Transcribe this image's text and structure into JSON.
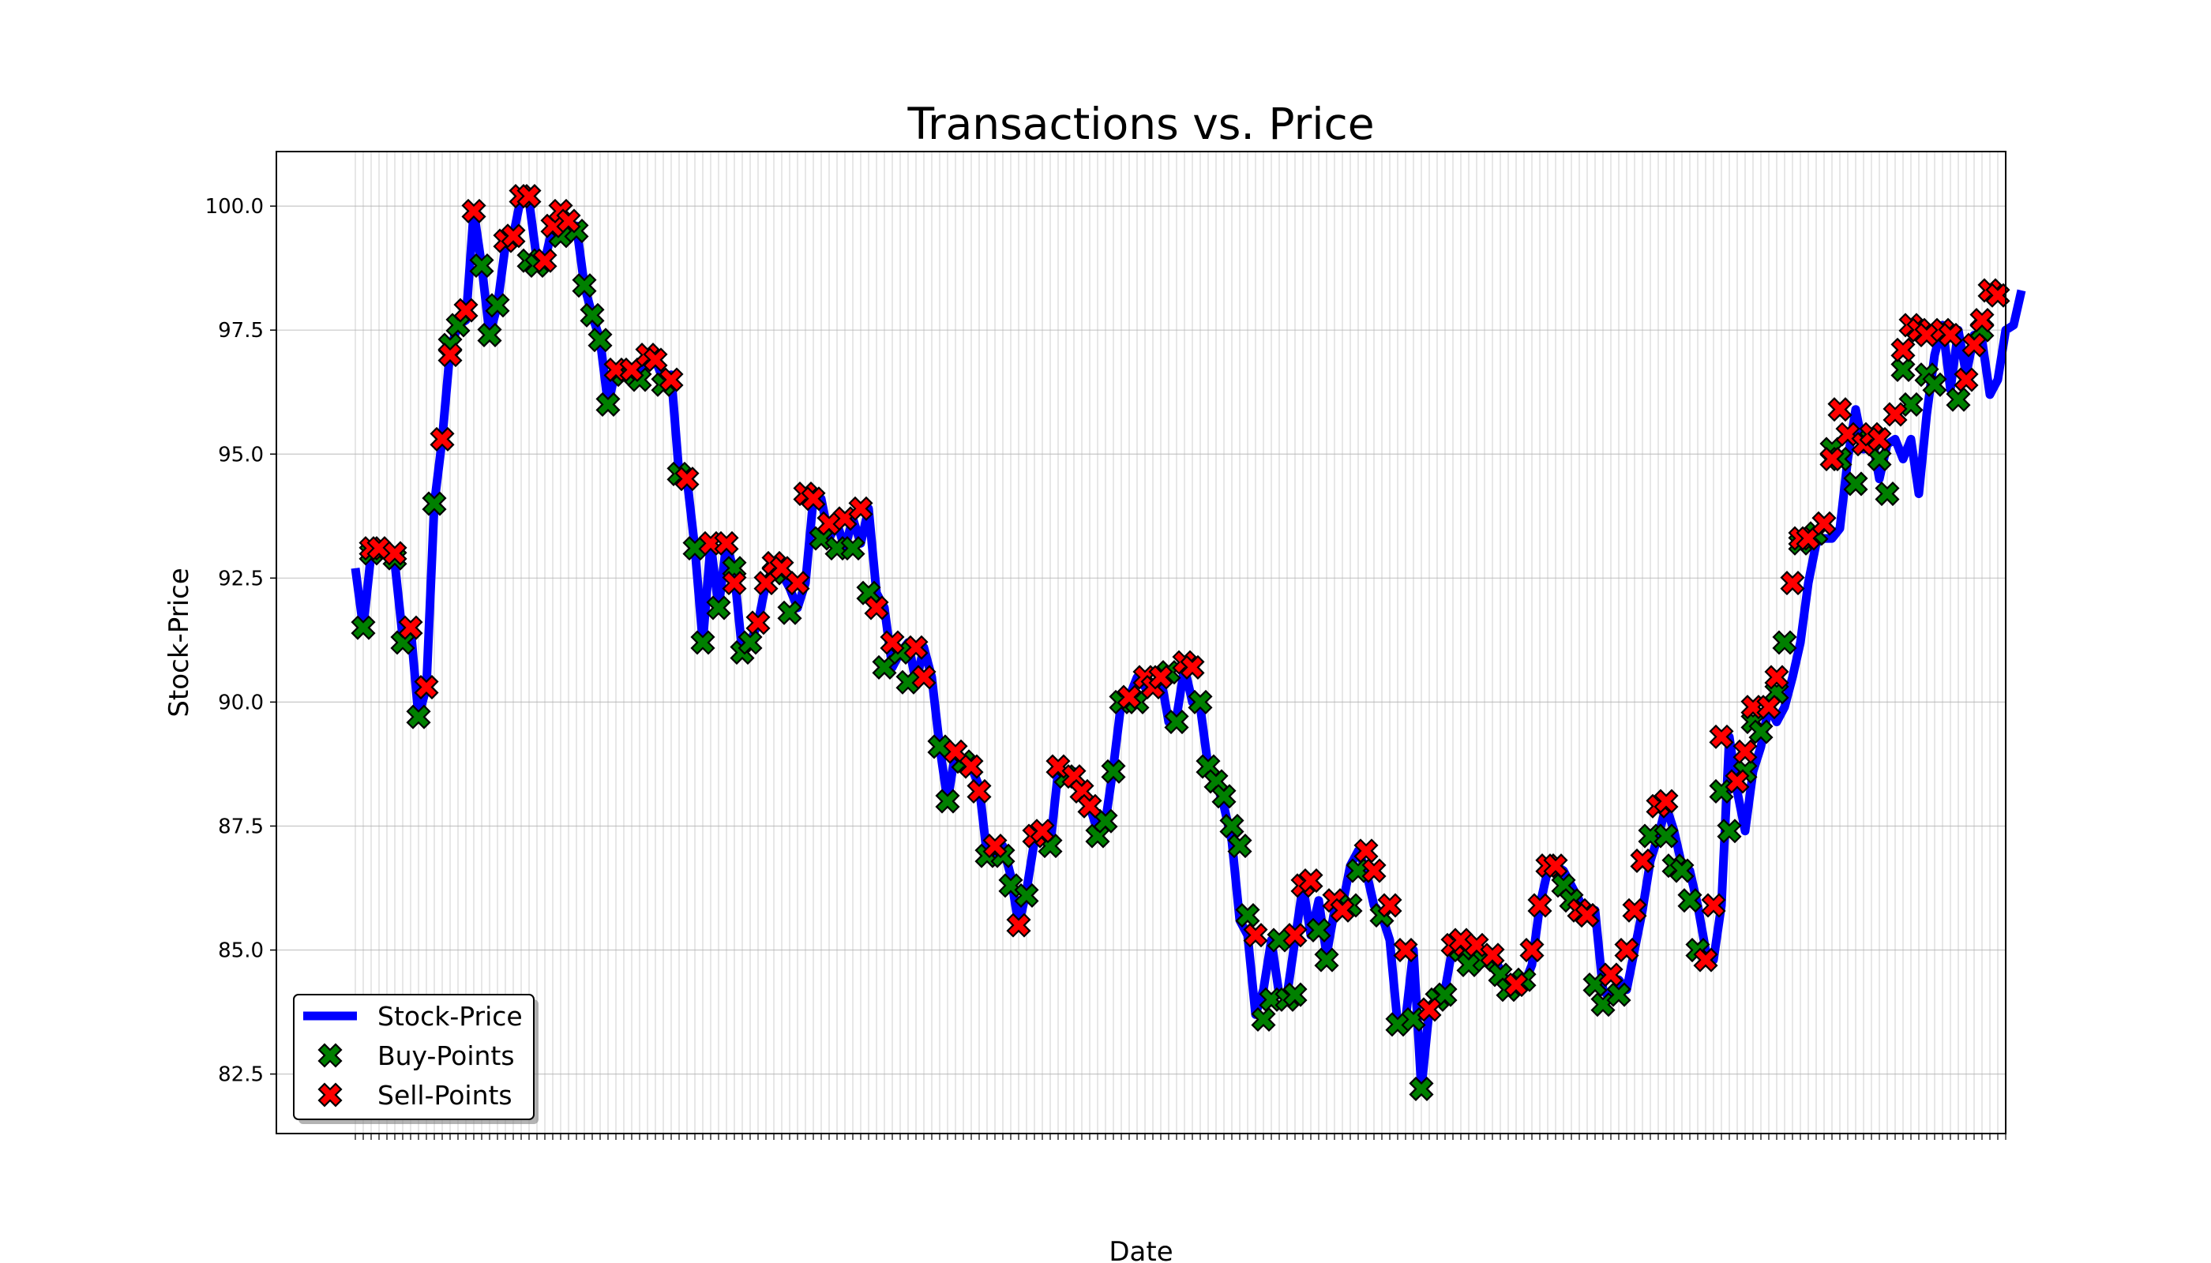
{
  "chart_data": {
    "type": "line",
    "title": "Transactions vs. Price",
    "xlabel": "Date",
    "ylabel": "Stock-Price",
    "ylim": [
      81.3,
      101.1
    ],
    "yticks": [
      "82.5",
      "85.0",
      "87.5",
      "90.0",
      "92.5",
      "95.0",
      "97.5",
      "100.0"
    ],
    "grid": true,
    "legend_position": "lower-left",
    "colors": {
      "line": "#0000ff",
      "buy": "#008000",
      "sell": "#ff0000"
    },
    "series": [
      {
        "name": "Stock-Price",
        "type": "line",
        "values": [
          92.7,
          91.5,
          93.0,
          93.0,
          93.0,
          92.8,
          91.3,
          91.5,
          89.7,
          90.3,
          94.0,
          95.3,
          97.1,
          97.6,
          97.7,
          99.9,
          98.8,
          97.4,
          98.0,
          99.2,
          99.4,
          100.2,
          100.1,
          98.9,
          98.9,
          99.6,
          99.9,
          99.4,
          99.6,
          98.4,
          97.8,
          97.3,
          96.0,
          96.7,
          96.6,
          96.7,
          96.5,
          97.0,
          96.9,
          96.5,
          96.6,
          94.6,
          94.5,
          93.1,
          91.2,
          93.2,
          91.9,
          93.2,
          92.6,
          91.0,
          91.2,
          91.6,
          92.4,
          92.7,
          92.6,
          92.3,
          91.9,
          92.4,
          94.1,
          94.1,
          93.3,
          93.6,
          93.1,
          93.7,
          93.2,
          93.9,
          92.2,
          91.9,
          90.7,
          91.0,
          91.2,
          90.4,
          91.1,
          90.5,
          89.1,
          88.0,
          89.0,
          88.8,
          88.7,
          88.3,
          86.9,
          86.9,
          87.1,
          86.5,
          85.5,
          86.2,
          87.2,
          87.3,
          87.1,
          88.6,
          88.5,
          88.6,
          88.2,
          87.9,
          87.4,
          87.6,
          88.7,
          90.0,
          90.1,
          90.5,
          90.3,
          90.3,
          90.5,
          89.6,
          89.7,
          90.7,
          90.0,
          89.9,
          88.7,
          88.4,
          87.9,
          87.2,
          85.6,
          85.3,
          83.7,
          84.2,
          85.2,
          84.1,
          84.1,
          85.2,
          86.3,
          85.3,
          86.0,
          84.9,
          85.8,
          85.9,
          86.7,
          87.0,
          86.6,
          85.9,
          85.7,
          85.2,
          83.5,
          83.6,
          85.0,
          82.2,
          83.8,
          84.0,
          84.2,
          85.1,
          85.1,
          84.7,
          85.1,
          84.8,
          84.9,
          84.6,
          84.3,
          84.4,
          84.3,
          84.7,
          85.9,
          86.6,
          86.7,
          86.6,
          86.3,
          86.0,
          85.7,
          85.8,
          84.2,
          84.0,
          84.4,
          84.2,
          85.0,
          85.8,
          86.8,
          87.3,
          87.9,
          87.4,
          86.7,
          86.6,
          85.9,
          85.0,
          84.8,
          85.9,
          89.3,
          88.2,
          87.4,
          88.6,
          89.1,
          89.9,
          89.6,
          89.9,
          90.5,
          91.2,
          92.4,
          93.2,
          93.3,
          93.3,
          93.5,
          94.9,
          95.9,
          95.1,
          95.4,
          94.5,
          95.2,
          95.3,
          94.9,
          95.3,
          94.2,
          95.8,
          97.0,
          97.6,
          96.3,
          97.5,
          96.6,
          97.4,
          97.3,
          96.2,
          96.5,
          97.5,
          97.6,
          98.3
        ]
      },
      {
        "name": "Buy-Points",
        "type": "scatter",
        "points": [
          [
            1,
            91.5
          ],
          [
            2,
            93.0
          ],
          [
            5,
            92.9
          ],
          [
            6,
            91.2
          ],
          [
            8,
            89.7
          ],
          [
            10,
            94.0
          ],
          [
            12,
            97.2
          ],
          [
            13,
            97.6
          ],
          [
            16,
            98.8
          ],
          [
            17,
            97.4
          ],
          [
            18,
            98.0
          ],
          [
            22,
            98.9
          ],
          [
            23,
            98.8
          ],
          [
            26,
            99.4
          ],
          [
            28,
            99.5
          ],
          [
            29,
            98.4
          ],
          [
            30,
            97.8
          ],
          [
            31,
            97.3
          ],
          [
            32,
            96.0
          ],
          [
            34,
            96.6
          ],
          [
            36,
            96.5
          ],
          [
            39,
            96.4
          ],
          [
            41,
            94.6
          ],
          [
            43,
            93.1
          ],
          [
            44,
            91.2
          ],
          [
            46,
            91.9
          ],
          [
            48,
            92.7
          ],
          [
            49,
            91.0
          ],
          [
            50,
            91.2
          ],
          [
            53,
            92.6
          ],
          [
            55,
            91.8
          ],
          [
            59,
            93.3
          ],
          [
            61,
            93.1
          ],
          [
            63,
            93.1
          ],
          [
            65,
            92.2
          ],
          [
            67,
            90.7
          ],
          [
            69,
            91.0
          ],
          [
            70,
            90.4
          ],
          [
            74,
            89.1
          ],
          [
            75,
            88.0
          ],
          [
            77,
            88.8
          ],
          [
            80,
            86.9
          ],
          [
            82,
            86.9
          ],
          [
            83,
            86.3
          ],
          [
            85,
            86.1
          ],
          [
            88,
            87.1
          ],
          [
            90,
            88.5
          ],
          [
            94,
            87.3
          ],
          [
            95,
            87.6
          ],
          [
            96,
            88.6
          ],
          [
            97,
            90.0
          ],
          [
            99,
            90.0
          ],
          [
            103,
            90.6
          ],
          [
            104,
            89.6
          ],
          [
            107,
            90.0
          ],
          [
            108,
            88.7
          ],
          [
            109,
            88.4
          ],
          [
            110,
            88.1
          ],
          [
            111,
            87.5
          ],
          [
            112,
            87.1
          ],
          [
            113,
            85.7
          ],
          [
            115,
            83.6
          ],
          [
            116,
            84.0
          ],
          [
            117,
            85.2
          ],
          [
            118,
            84.0
          ],
          [
            119,
            84.1
          ],
          [
            122,
            85.4
          ],
          [
            123,
            84.8
          ],
          [
            126,
            85.9
          ],
          [
            127,
            86.6
          ],
          [
            130,
            85.7
          ],
          [
            132,
            83.5
          ],
          [
            134,
            83.6
          ],
          [
            135,
            82.2
          ],
          [
            137,
            84.0
          ],
          [
            138,
            84.1
          ],
          [
            140,
            85.0
          ],
          [
            141,
            84.7
          ],
          [
            143,
            84.8
          ],
          [
            145,
            84.5
          ],
          [
            146,
            84.2
          ],
          [
            148,
            84.4
          ],
          [
            151,
            86.7
          ],
          [
            153,
            86.3
          ],
          [
            154,
            86.0
          ],
          [
            156,
            85.7
          ],
          [
            157,
            84.3
          ],
          [
            158,
            83.9
          ],
          [
            160,
            84.1
          ],
          [
            164,
            87.3
          ],
          [
            166,
            87.3
          ],
          [
            167,
            86.7
          ],
          [
            168,
            86.6
          ],
          [
            169,
            86.0
          ],
          [
            170,
            85.0
          ],
          [
            173,
            88.2
          ],
          [
            174,
            87.4
          ],
          [
            176,
            88.6
          ],
          [
            177,
            89.6
          ],
          [
            178,
            89.4
          ],
          [
            180,
            90.2
          ],
          [
            181,
            91.2
          ],
          [
            183,
            93.2
          ],
          [
            185,
            93.4
          ],
          [
            187,
            95.1
          ],
          [
            188,
            94.9
          ],
          [
            190,
            94.4
          ],
          [
            192,
            95.3
          ],
          [
            193,
            94.9
          ],
          [
            194,
            94.2
          ],
          [
            196,
            96.7
          ],
          [
            197,
            96.0
          ],
          [
            199,
            96.6
          ],
          [
            200,
            96.4
          ],
          [
            203,
            96.1
          ],
          [
            206,
            97.5
          ]
        ]
      },
      {
        "name": "Sell-Points",
        "type": "scatter",
        "points": [
          [
            2,
            93.1
          ],
          [
            3,
            93.1
          ],
          [
            5,
            93.0
          ],
          [
            7,
            91.5
          ],
          [
            9,
            90.3
          ],
          [
            11,
            95.3
          ],
          [
            12,
            97.0
          ],
          [
            14,
            97.9
          ],
          [
            15,
            99.9
          ],
          [
            19,
            99.3
          ],
          [
            20,
            99.4
          ],
          [
            21,
            100.2
          ],
          [
            22,
            100.2
          ],
          [
            24,
            98.9
          ],
          [
            25,
            99.6
          ],
          [
            26,
            99.9
          ],
          [
            27,
            99.7
          ],
          [
            33,
            96.7
          ],
          [
            35,
            96.7
          ],
          [
            37,
            97.0
          ],
          [
            38,
            96.9
          ],
          [
            40,
            96.5
          ],
          [
            42,
            94.5
          ],
          [
            45,
            93.2
          ],
          [
            47,
            93.2
          ],
          [
            48,
            92.4
          ],
          [
            51,
            91.6
          ],
          [
            52,
            92.4
          ],
          [
            53,
            92.8
          ],
          [
            54,
            92.7
          ],
          [
            56,
            92.4
          ],
          [
            57,
            94.2
          ],
          [
            58,
            94.1
          ],
          [
            60,
            93.6
          ],
          [
            62,
            93.7
          ],
          [
            64,
            93.9
          ],
          [
            66,
            91.9
          ],
          [
            68,
            91.2
          ],
          [
            71,
            91.1
          ],
          [
            72,
            90.5
          ],
          [
            76,
            89.0
          ],
          [
            78,
            88.7
          ],
          [
            79,
            88.2
          ],
          [
            81,
            87.1
          ],
          [
            84,
            85.5
          ],
          [
            86,
            87.3
          ],
          [
            87,
            87.4
          ],
          [
            89,
            88.7
          ],
          [
            91,
            88.5
          ],
          [
            92,
            88.2
          ],
          [
            93,
            87.9
          ],
          [
            98,
            90.1
          ],
          [
            100,
            90.5
          ],
          [
            101,
            90.3
          ],
          [
            102,
            90.5
          ],
          [
            105,
            90.8
          ],
          [
            106,
            90.7
          ],
          [
            114,
            85.3
          ],
          [
            119,
            85.3
          ],
          [
            120,
            86.3
          ],
          [
            121,
            86.4
          ],
          [
            124,
            86.0
          ],
          [
            125,
            85.8
          ],
          [
            128,
            87.0
          ],
          [
            129,
            86.6
          ],
          [
            131,
            85.9
          ],
          [
            133,
            85.0
          ],
          [
            136,
            83.8
          ],
          [
            139,
            85.1
          ],
          [
            140,
            85.2
          ],
          [
            142,
            85.1
          ],
          [
            144,
            84.9
          ],
          [
            147,
            84.3
          ],
          [
            149,
            85.0
          ],
          [
            150,
            85.9
          ],
          [
            151,
            86.7
          ],
          [
            152,
            86.7
          ],
          [
            155,
            85.8
          ],
          [
            156,
            85.7
          ],
          [
            159,
            84.5
          ],
          [
            161,
            85.0
          ],
          [
            162,
            85.8
          ],
          [
            163,
            86.8
          ],
          [
            165,
            87.9
          ],
          [
            166,
            88.0
          ],
          [
            171,
            84.8
          ],
          [
            172,
            85.9
          ],
          [
            173,
            89.3
          ],
          [
            175,
            88.4
          ],
          [
            176,
            89.0
          ],
          [
            177,
            89.9
          ],
          [
            179,
            89.9
          ],
          [
            180,
            90.5
          ],
          [
            182,
            92.4
          ],
          [
            183,
            93.3
          ],
          [
            184,
            93.3
          ],
          [
            186,
            93.6
          ],
          [
            187,
            94.9
          ],
          [
            188,
            95.9
          ],
          [
            189,
            95.4
          ],
          [
            191,
            95.2
          ],
          [
            192,
            95.4
          ],
          [
            193,
            95.3
          ],
          [
            195,
            95.8
          ],
          [
            196,
            97.1
          ],
          [
            197,
            97.6
          ],
          [
            198,
            97.5
          ],
          [
            199,
            97.4
          ],
          [
            201,
            97.5
          ],
          [
            202,
            97.4
          ],
          [
            204,
            96.5
          ],
          [
            205,
            97.2
          ],
          [
            206,
            97.7
          ],
          [
            207,
            98.3
          ],
          [
            208,
            98.2
          ]
        ]
      }
    ]
  }
}
